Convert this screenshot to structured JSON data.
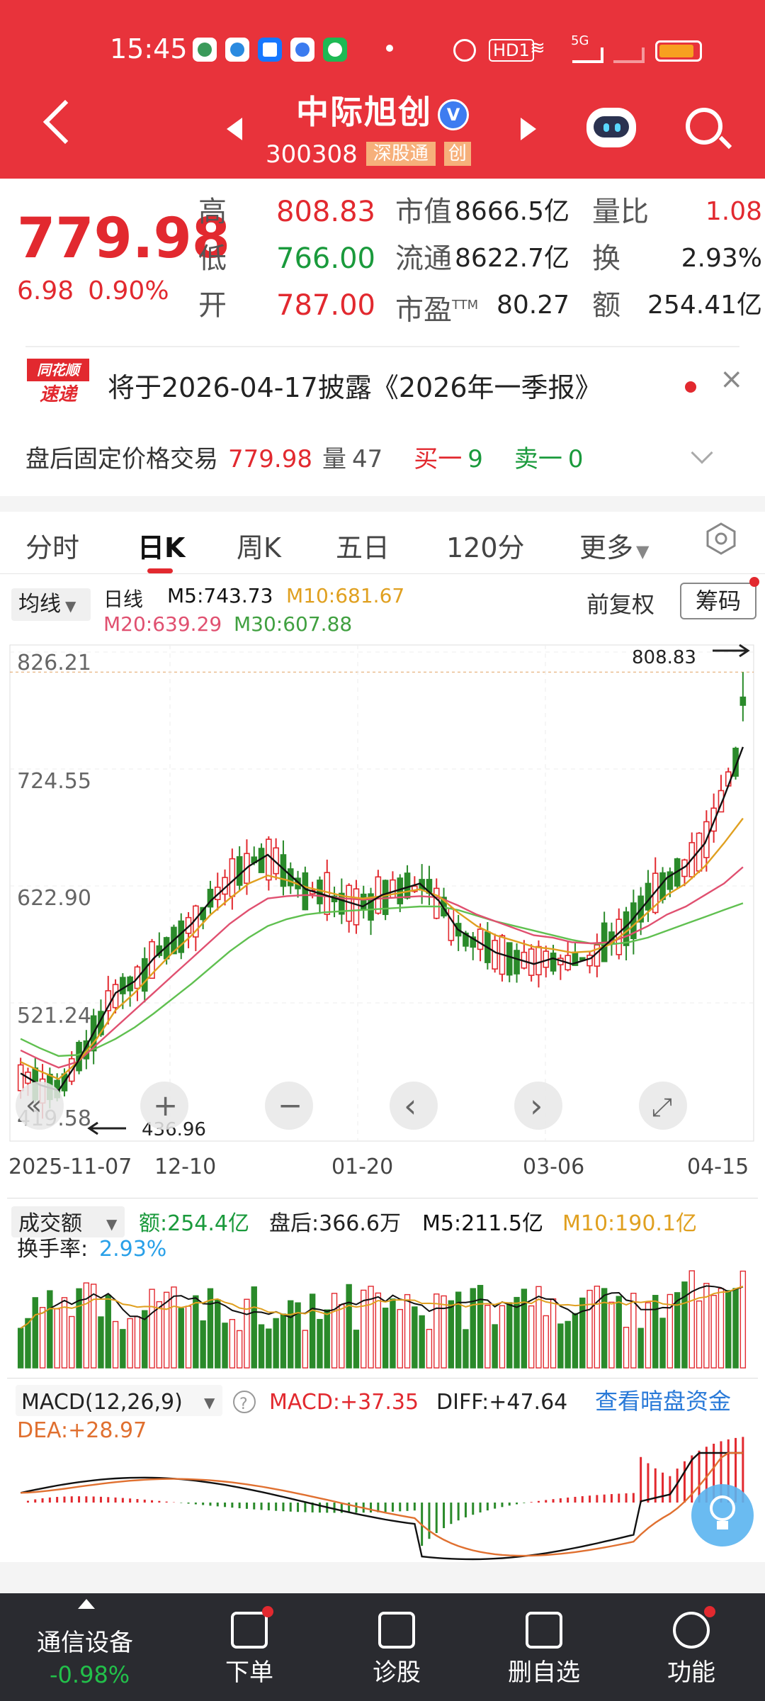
{
  "status_bar": {
    "time": "15:45",
    "hd_label": "HD1",
    "network": "5G"
  },
  "header": {
    "stock_name": "中际旭创",
    "verify_mark": "V",
    "stock_code": "300308",
    "tags": [
      "深股通",
      "创"
    ]
  },
  "quote": {
    "price": "779.98",
    "change": "6.98",
    "change_pct": "0.90%",
    "col1": [
      {
        "label": "高",
        "value": "808.83",
        "color": "#e2292f"
      },
      {
        "label": "低",
        "value": "766.00",
        "color": "#1a9a3c"
      },
      {
        "label": "开",
        "value": "787.00",
        "color": "#e2292f"
      }
    ],
    "col2": [
      {
        "label": "市值",
        "value": "8666.5亿"
      },
      {
        "label": "流通",
        "value": "8622.7亿"
      },
      {
        "label": "市盈",
        "sup": "TTM",
        "value": "80.27"
      }
    ],
    "col3": [
      {
        "label": "量比",
        "value": "1.08",
        "color": "#e2292f"
      },
      {
        "label": "换",
        "value": "2.93%"
      },
      {
        "label": "额",
        "value": "254.41亿"
      }
    ]
  },
  "notice": {
    "logo_top": "同花顺",
    "logo_bottom": "速递",
    "text": "将于2026-04-17披露《2026年一季报》",
    "close": "×"
  },
  "after_hours": {
    "label": "盘后固定价格交易",
    "price": "779.98",
    "vol_label": "量",
    "vol": "47",
    "buy_label": "买一",
    "buy": "9",
    "sell_label": "卖一",
    "sell": "0"
  },
  "tabs": [
    "分时",
    "日K",
    "周K",
    "五日",
    "120分",
    "更多"
  ],
  "active_tab": 1,
  "kline": {
    "ma_button": "均线",
    "period": "日线",
    "m5": "M5:743.73",
    "m10": "M10:681.67",
    "m20": "M20:639.29",
    "m30": "M30:607.88",
    "adjust": "前复权",
    "chips": "筹码",
    "max_marker": "808.83",
    "min_marker": "436.96",
    "colors": {
      "m5": "#111111",
      "m10": "#e0a020",
      "m20": "#e05070",
      "m30": "#60c050",
      "up": "#e2292f",
      "down": "#2a8a2a"
    }
  },
  "controls": [
    "«",
    "+",
    "−",
    "‹",
    "›",
    "⤢"
  ],
  "volume": {
    "menu": "成交额",
    "amount": "额:254.4亿",
    "after": "盘后:366.6万",
    "m5": "M5:211.5亿",
    "m10": "M10:190.1亿",
    "turnover_label": "换手率:",
    "turnover": "2.93%"
  },
  "macd": {
    "menu": "MACD(12,26,9)",
    "help": "?",
    "macd": "MACD:+37.35",
    "diff": "DIFF:+47.64",
    "link": "查看暗盘资金",
    "dea": "DEA:+28.97"
  },
  "bottom_nav": {
    "industry": "通信设备",
    "industry_change": "-0.98%",
    "items": [
      "下单",
      "诊股",
      "删自选",
      "功能"
    ]
  },
  "chart_data": {
    "type": "candlestick",
    "y_ticks": [
      "826.21",
      "724.55",
      "622.90",
      "521.24",
      "419.58"
    ],
    "x_ticks": [
      "2025-11-07",
      "12-10",
      "01-20",
      "03-06",
      "04-15"
    ],
    "ylim": [
      419.58,
      826.21
    ],
    "high": 808.83,
    "low": 436.96,
    "m5_series": [
      460,
      450,
      445,
      470,
      500,
      530,
      540,
      560,
      575,
      590,
      610,
      625,
      640,
      650,
      635,
      620,
      615,
      610,
      605,
      615,
      620,
      625,
      610,
      585,
      575,
      565,
      560,
      555,
      560,
      555,
      560,
      575,
      590,
      610,
      630,
      640,
      660,
      700,
      743.73
    ],
    "m10_series": [
      470,
      462,
      455,
      470,
      490,
      515,
      530,
      548,
      565,
      580,
      598,
      612,
      625,
      632,
      628,
      622,
      618,
      614,
      612,
      614,
      617,
      620,
      614,
      600,
      588,
      580,
      575,
      570,
      568,
      565,
      566,
      572,
      585,
      600,
      615,
      625,
      640,
      660,
      681.67
    ],
    "m20_series": [
      480,
      472,
      465,
      470,
      485,
      500,
      515,
      530,
      545,
      560,
      575,
      590,
      602,
      612,
      614,
      615,
      614,
      612,
      611,
      612,
      613,
      614,
      613,
      606,
      598,
      592,
      586,
      580,
      578,
      574,
      573,
      574,
      580,
      588,
      598,
      605,
      615,
      625,
      639.29
    ],
    "m30_series": [
      490,
      482,
      475,
      476,
      482,
      490,
      500,
      512,
      525,
      538,
      552,
      566,
      578,
      588,
      594,
      598,
      600,
      601,
      602,
      603,
      604,
      605,
      605,
      602,
      597,
      592,
      588,
      584,
      580,
      576,
      573,
      572,
      574,
      578,
      584,
      590,
      596,
      602,
      607.88
    ]
  }
}
